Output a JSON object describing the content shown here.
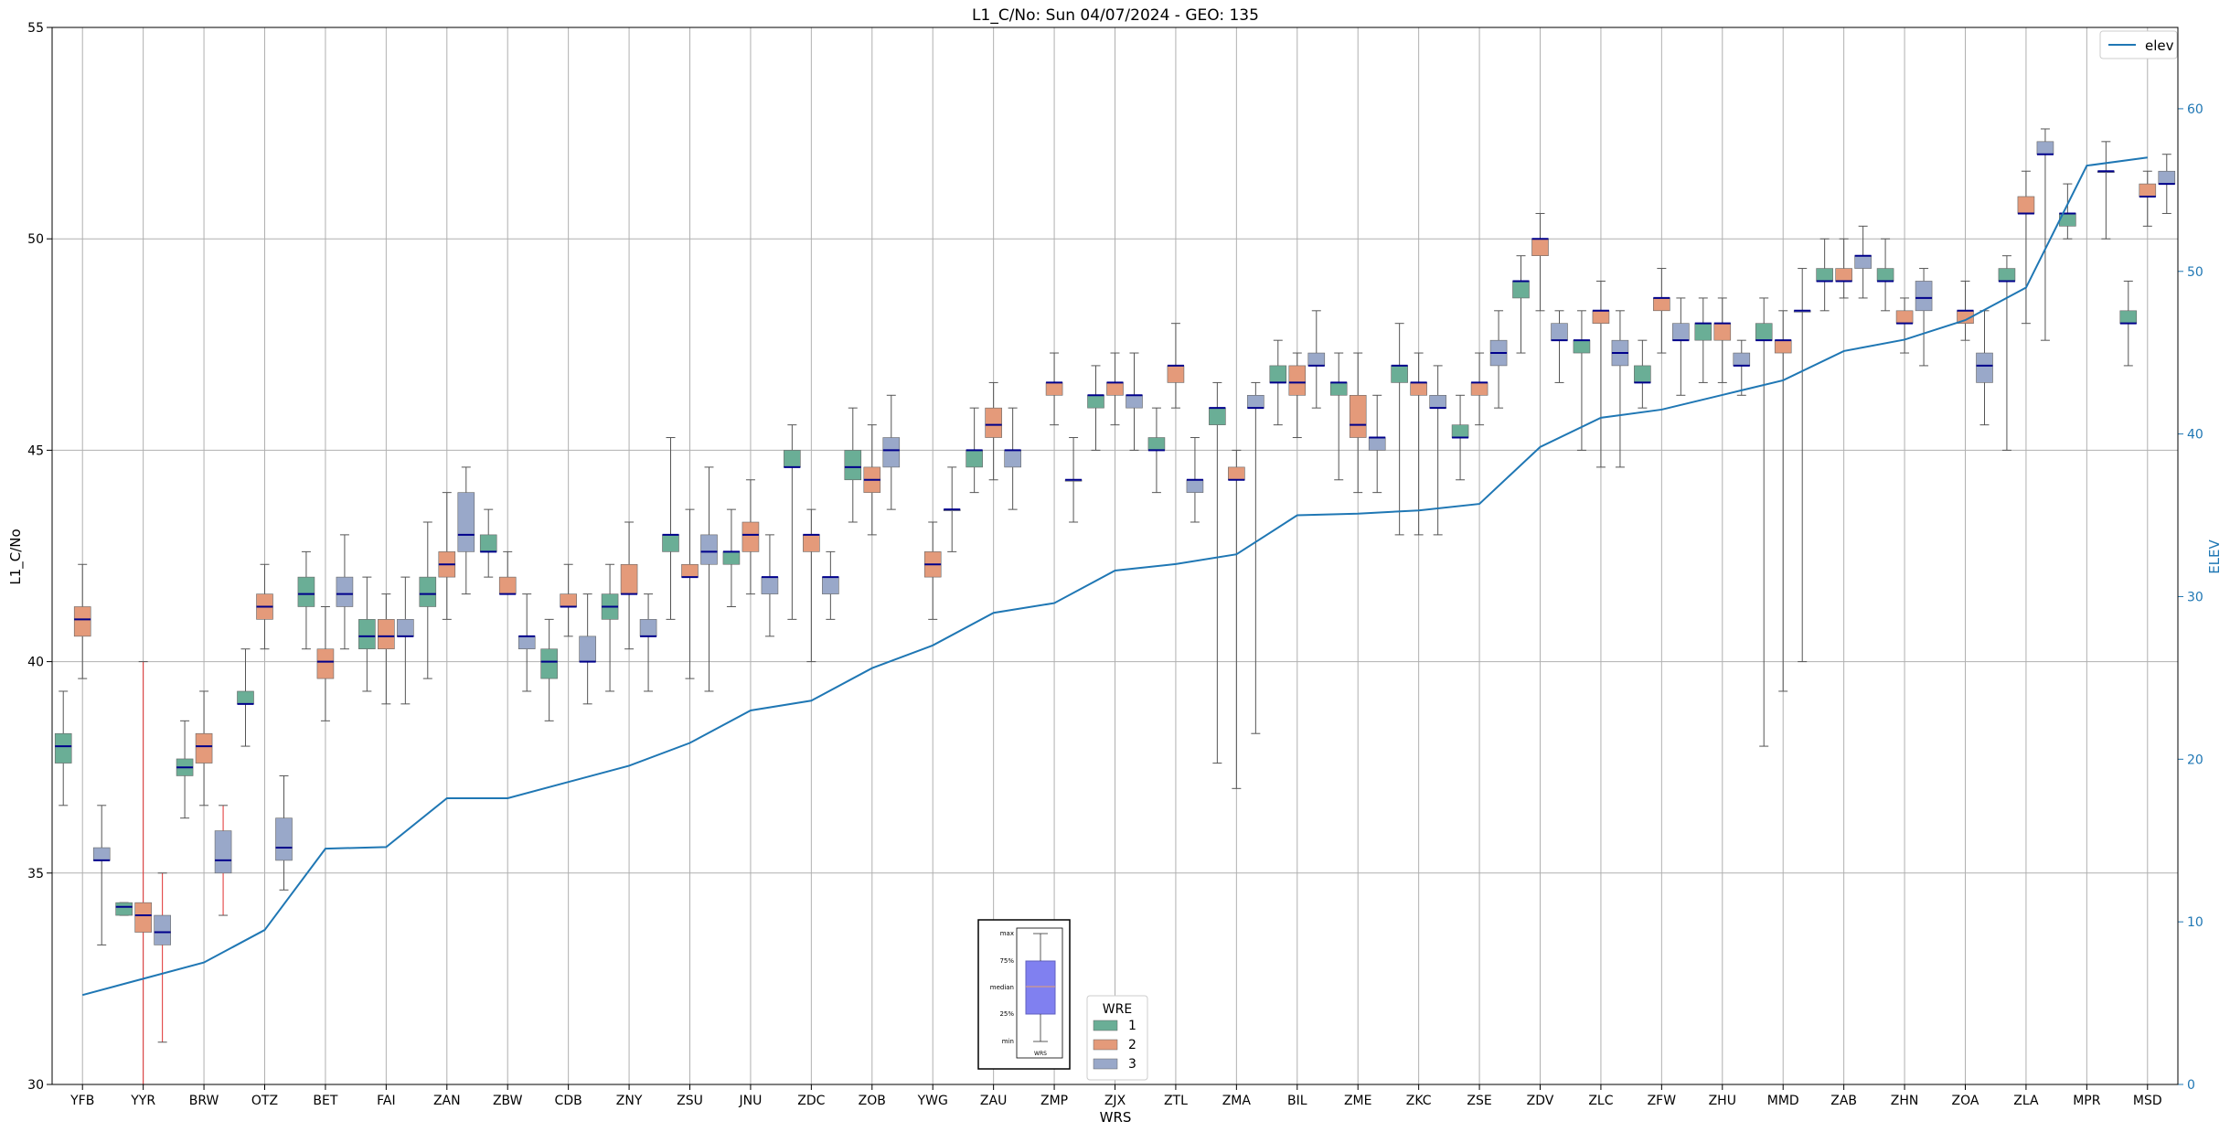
{
  "chart_data": {
    "type": "box",
    "title": "L1_C/No: Sun 04/07/2024 - GEO: 135",
    "xlabel": "WRS",
    "ylabel": "L1_C/No",
    "y2label": "ELEV",
    "ylim": [
      30,
      55
    ],
    "y2lim": [
      0,
      65
    ],
    "yticks": [
      "30",
      "35",
      "40",
      "45",
      "50",
      "55"
    ],
    "y2ticks": [
      "0",
      "10",
      "20",
      "30",
      "40",
      "50",
      "60"
    ],
    "grid": true,
    "categories": [
      "YFB",
      "YYR",
      "BRW",
      "OTZ",
      "BET",
      "FAI",
      "ZAN",
      "ZBW",
      "CDB",
      "ZNY",
      "ZSU",
      "JNU",
      "ZDC",
      "ZOB",
      "YWG",
      "ZAU",
      "ZMP",
      "ZJX",
      "ZTL",
      "ZMA",
      "BIL",
      "ZME",
      "ZKC",
      "ZSE",
      "ZDV",
      "ZLC",
      "ZFW",
      "ZHU",
      "MMD",
      "ZAB",
      "ZHN",
      "ZOA",
      "ZLA",
      "MPR",
      "MSD"
    ],
    "legend_title": "WRE",
    "series": [
      {
        "name": "1",
        "color": "#6aae96",
        "boxes": [
          [
            36.6,
            37.6,
            38.0,
            38.3,
            39.3
          ],
          [
            34.0,
            34.0,
            34.2,
            34.3,
            34.3
          ],
          [
            36.3,
            37.3,
            37.5,
            37.7,
            38.6
          ],
          [
            38.0,
            39.0,
            39.0,
            39.3,
            40.3
          ],
          [
            40.3,
            41.3,
            41.6,
            42.0,
            42.6
          ],
          [
            39.3,
            40.3,
            40.6,
            41.0,
            42.0
          ],
          [
            39.6,
            41.3,
            41.6,
            42.0,
            43.3
          ],
          [
            42.0,
            42.6,
            42.6,
            43.0,
            43.6
          ],
          [
            38.6,
            39.6,
            40.0,
            40.3,
            41.0
          ],
          [
            39.3,
            41.0,
            41.3,
            41.6,
            42.3
          ],
          [
            41.0,
            42.6,
            43.0,
            43.0,
            45.3
          ],
          [
            41.3,
            42.3,
            42.6,
            42.6,
            43.6
          ],
          [
            41.0,
            44.6,
            44.6,
            45.0,
            45.6
          ],
          [
            43.3,
            44.3,
            44.6,
            45.0,
            46.0
          ],
          null,
          [
            44.0,
            44.6,
            45.0,
            45.0,
            46.0
          ],
          null,
          [
            45.0,
            46.0,
            46.3,
            46.3,
            47.0
          ],
          [
            44.0,
            45.0,
            45.0,
            45.3,
            46.0
          ],
          [
            37.6,
            45.6,
            46.0,
            46.0,
            46.6
          ],
          [
            45.6,
            46.6,
            46.6,
            47.0,
            47.6
          ],
          [
            44.3,
            46.3,
            46.6,
            46.6,
            47.3
          ],
          [
            43.0,
            46.6,
            47.0,
            47.0,
            48.0
          ],
          [
            44.3,
            45.3,
            45.3,
            45.6,
            46.3
          ],
          [
            47.3,
            48.6,
            49.0,
            49.0,
            49.6
          ],
          [
            45.0,
            47.3,
            47.6,
            47.6,
            48.3
          ],
          [
            46.0,
            46.6,
            46.6,
            47.0,
            47.6
          ],
          [
            46.6,
            47.6,
            48.0,
            48.0,
            48.6
          ],
          [
            38.0,
            47.6,
            47.6,
            48.0,
            48.6
          ],
          [
            48.3,
            49.0,
            49.0,
            49.3,
            50.0
          ],
          [
            48.3,
            49.0,
            49.0,
            49.3,
            50.0
          ],
          null,
          [
            45.0,
            49.0,
            49.0,
            49.3,
            49.6
          ],
          [
            50.0,
            50.3,
            50.6,
            50.6,
            51.3
          ],
          [
            47.0,
            48.0,
            48.0,
            48.3,
            49.0
          ]
        ]
      },
      {
        "name": "2",
        "color": "#e49a7a",
        "boxes": [
          [
            39.6,
            40.6,
            41.0,
            41.3,
            42.3
          ],
          [
            30.0,
            33.6,
            34.0,
            34.3,
            40.0
          ],
          [
            36.6,
            37.6,
            38.0,
            38.3,
            39.3
          ],
          [
            40.3,
            41.0,
            41.3,
            41.6,
            42.3
          ],
          [
            38.6,
            39.6,
            40.0,
            40.3,
            41.3
          ],
          [
            39.0,
            40.3,
            40.6,
            41.0,
            41.6
          ],
          [
            41.0,
            42.0,
            42.3,
            42.6,
            44.0
          ],
          [
            41.6,
            41.6,
            41.6,
            42.0,
            42.6
          ],
          [
            40.6,
            41.3,
            41.3,
            41.6,
            42.3
          ],
          [
            40.3,
            41.6,
            41.6,
            42.3,
            43.3
          ],
          [
            39.6,
            42.0,
            42.0,
            42.3,
            43.6
          ],
          [
            41.6,
            42.6,
            43.0,
            43.3,
            44.3
          ],
          [
            40.0,
            42.6,
            43.0,
            43.0,
            43.6
          ],
          [
            43.0,
            44.0,
            44.3,
            44.6,
            45.6
          ],
          [
            41.0,
            42.0,
            42.3,
            42.6,
            43.3
          ],
          [
            44.3,
            45.3,
            45.6,
            46.0,
            46.6
          ],
          [
            45.6,
            46.3,
            46.6,
            46.6,
            47.3
          ],
          [
            45.6,
            46.3,
            46.6,
            46.6,
            47.3
          ],
          [
            46.0,
            46.6,
            47.0,
            47.0,
            48.0
          ],
          [
            37.0,
            44.3,
            44.3,
            44.6,
            45.0
          ],
          [
            45.3,
            46.3,
            46.6,
            47.0,
            47.3
          ],
          [
            44.0,
            45.3,
            45.6,
            46.3,
            47.3
          ],
          [
            43.0,
            46.3,
            46.6,
            46.6,
            47.3
          ],
          [
            45.6,
            46.3,
            46.6,
            46.6,
            47.3
          ],
          [
            48.3,
            49.6,
            50.0,
            50.0,
            50.6
          ],
          [
            44.6,
            48.0,
            48.3,
            48.3,
            49.0
          ],
          [
            47.3,
            48.3,
            48.6,
            48.6,
            49.3
          ],
          [
            46.6,
            47.6,
            48.0,
            48.0,
            48.6
          ],
          [
            39.3,
            47.3,
            47.6,
            47.6,
            48.3
          ],
          [
            48.6,
            49.0,
            49.0,
            49.3,
            50.0
          ],
          [
            47.3,
            48.0,
            48.0,
            48.3,
            48.6
          ],
          [
            47.6,
            48.0,
            48.3,
            48.3,
            49.0
          ],
          [
            48.0,
            50.6,
            50.6,
            51.0,
            51.6
          ],
          null,
          [
            50.3,
            51.0,
            51.0,
            51.3,
            51.6
          ]
        ]
      },
      {
        "name": "3",
        "color": "#99a8c9",
        "boxes": [
          [
            33.3,
            35.3,
            35.3,
            35.6,
            36.6
          ],
          [
            31.0,
            33.3,
            33.6,
            34.0,
            35.0
          ],
          [
            34.0,
            35.0,
            35.3,
            36.0,
            36.6
          ],
          [
            34.6,
            35.3,
            35.6,
            36.3,
            37.3
          ],
          [
            40.3,
            41.3,
            41.6,
            42.0,
            43.0
          ],
          [
            39.0,
            40.6,
            40.6,
            41.0,
            42.0
          ],
          [
            41.6,
            42.6,
            43.0,
            44.0,
            44.6
          ],
          [
            39.3,
            40.3,
            40.6,
            40.6,
            41.6
          ],
          [
            39.0,
            40.0,
            40.0,
            40.6,
            41.6
          ],
          [
            39.3,
            40.6,
            40.6,
            41.0,
            41.6
          ],
          [
            39.3,
            42.3,
            42.6,
            43.0,
            44.6
          ],
          [
            40.6,
            41.6,
            42.0,
            42.0,
            43.0
          ],
          [
            41.0,
            41.6,
            42.0,
            42.0,
            42.6
          ],
          [
            43.6,
            44.6,
            45.0,
            45.3,
            46.3
          ],
          [
            42.6,
            43.6,
            43.6,
            43.6,
            44.6
          ],
          [
            43.6,
            44.6,
            45.0,
            45.0,
            46.0
          ],
          [
            43.3,
            44.3,
            44.3,
            44.3,
            45.3
          ],
          [
            45.0,
            46.0,
            46.3,
            46.3,
            47.3
          ],
          [
            43.3,
            44.0,
            44.3,
            44.3,
            45.3
          ],
          [
            38.3,
            46.0,
            46.0,
            46.3,
            46.6
          ],
          [
            46.0,
            47.0,
            47.0,
            47.3,
            48.3
          ],
          [
            44.0,
            45.0,
            45.3,
            45.3,
            46.3
          ],
          [
            43.0,
            46.0,
            46.0,
            46.3,
            47.0
          ],
          [
            46.0,
            47.0,
            47.3,
            47.6,
            48.3
          ],
          [
            46.6,
            47.6,
            47.6,
            48.0,
            48.3
          ],
          [
            44.6,
            47.0,
            47.3,
            47.6,
            48.3
          ],
          [
            46.3,
            47.6,
            47.6,
            48.0,
            48.6
          ],
          [
            46.3,
            47.0,
            47.0,
            47.3,
            47.6
          ],
          [
            40.0,
            48.3,
            48.3,
            48.3,
            49.3
          ],
          [
            48.6,
            49.3,
            49.6,
            49.6,
            50.3
          ],
          [
            47.0,
            48.3,
            48.6,
            49.0,
            49.3
          ],
          [
            45.6,
            46.6,
            47.0,
            47.3,
            48.3
          ],
          [
            47.6,
            52.0,
            52.0,
            52.3,
            52.6
          ],
          [
            50.0,
            51.6,
            51.6,
            51.6,
            52.3
          ],
          [
            50.6,
            51.3,
            51.3,
            51.6,
            52.0
          ]
        ]
      }
    ],
    "red_whisker_boxes": [
      [
        1,
        1
      ],
      [
        1,
        2
      ],
      [
        2,
        2
      ]
    ],
    "line": {
      "name": "elev",
      "color": "#1f77b4",
      "axis": "right",
      "values": [
        5.5,
        6.5,
        7.5,
        9.5,
        14.5,
        14.6,
        17.6,
        17.6,
        18.6,
        19.6,
        21.0,
        23.0,
        23.6,
        25.6,
        27.0,
        29.0,
        29.6,
        31.6,
        32.0,
        32.6,
        35.0,
        35.1,
        35.3,
        35.7,
        39.2,
        41.0,
        41.5,
        42.4,
        43.3,
        45.1,
        45.8,
        47.0,
        49.0,
        56.5,
        57.0
      ]
    },
    "legend_line": "elev",
    "inset": {
      "labels": [
        "max",
        "75%",
        "median",
        "25%",
        "min"
      ],
      "xlabel": "WRS"
    }
  }
}
